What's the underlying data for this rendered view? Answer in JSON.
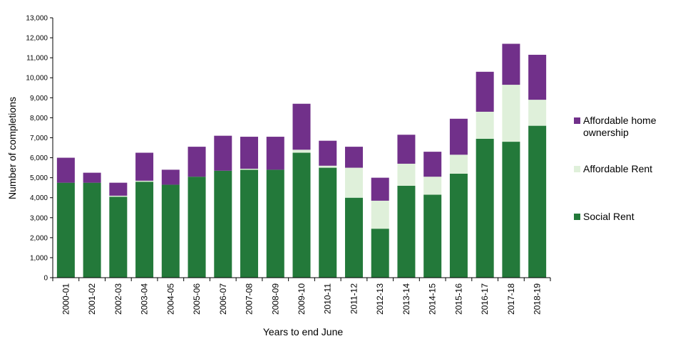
{
  "chart_data": {
    "type": "bar",
    "stacked": true,
    "xlabel": "Years to end June",
    "ylabel": "Number of completions",
    "ylim": [
      0,
      13000
    ],
    "ytick_step": 1000,
    "grid": false,
    "legend_position": "right",
    "categories": [
      "2000-01",
      "2001-02",
      "2002-03",
      "2003-04",
      "2004-05",
      "2005-06",
      "2006-07",
      "2007-08",
      "2008-09",
      "2009-10",
      "2010-11",
      "2011-12",
      "2012-13",
      "2013-14",
      "2014-15",
      "2015-16",
      "2016-17",
      "2017-18",
      "2018-19"
    ],
    "series": [
      {
        "name": "Social Rent",
        "color": "#23793a",
        "values": [
          4750,
          4750,
          4050,
          4800,
          4650,
          5050,
          5350,
          5400,
          5400,
          6250,
          5500,
          4000,
          2450,
          4600,
          4150,
          5200,
          6950,
          6800,
          7600
        ]
      },
      {
        "name": "Affordable Rent",
        "color": "#dff0da",
        "values": [
          0,
          0,
          50,
          50,
          0,
          0,
          0,
          50,
          0,
          150,
          100,
          1500,
          1400,
          1100,
          900,
          950,
          1350,
          2850,
          1300
        ]
      },
      {
        "name": "Affordable home ownership",
        "color": "#71308a",
        "values": [
          1250,
          500,
          650,
          1400,
          750,
          1500,
          1750,
          1600,
          1650,
          2300,
          1250,
          1050,
          1150,
          1450,
          1250,
          1800,
          2000,
          2050,
          2250
        ]
      }
    ],
    "legend_order": [
      "Affordable home ownership",
      "Affordable Rent",
      "Social Rent"
    ],
    "legend_lines": {
      "Affordable home ownership": [
        "Affordable home",
        "ownership"
      ],
      "Affordable Rent": [
        "Affordable Rent"
      ],
      "Social Rent": [
        "Social Rent"
      ]
    }
  }
}
